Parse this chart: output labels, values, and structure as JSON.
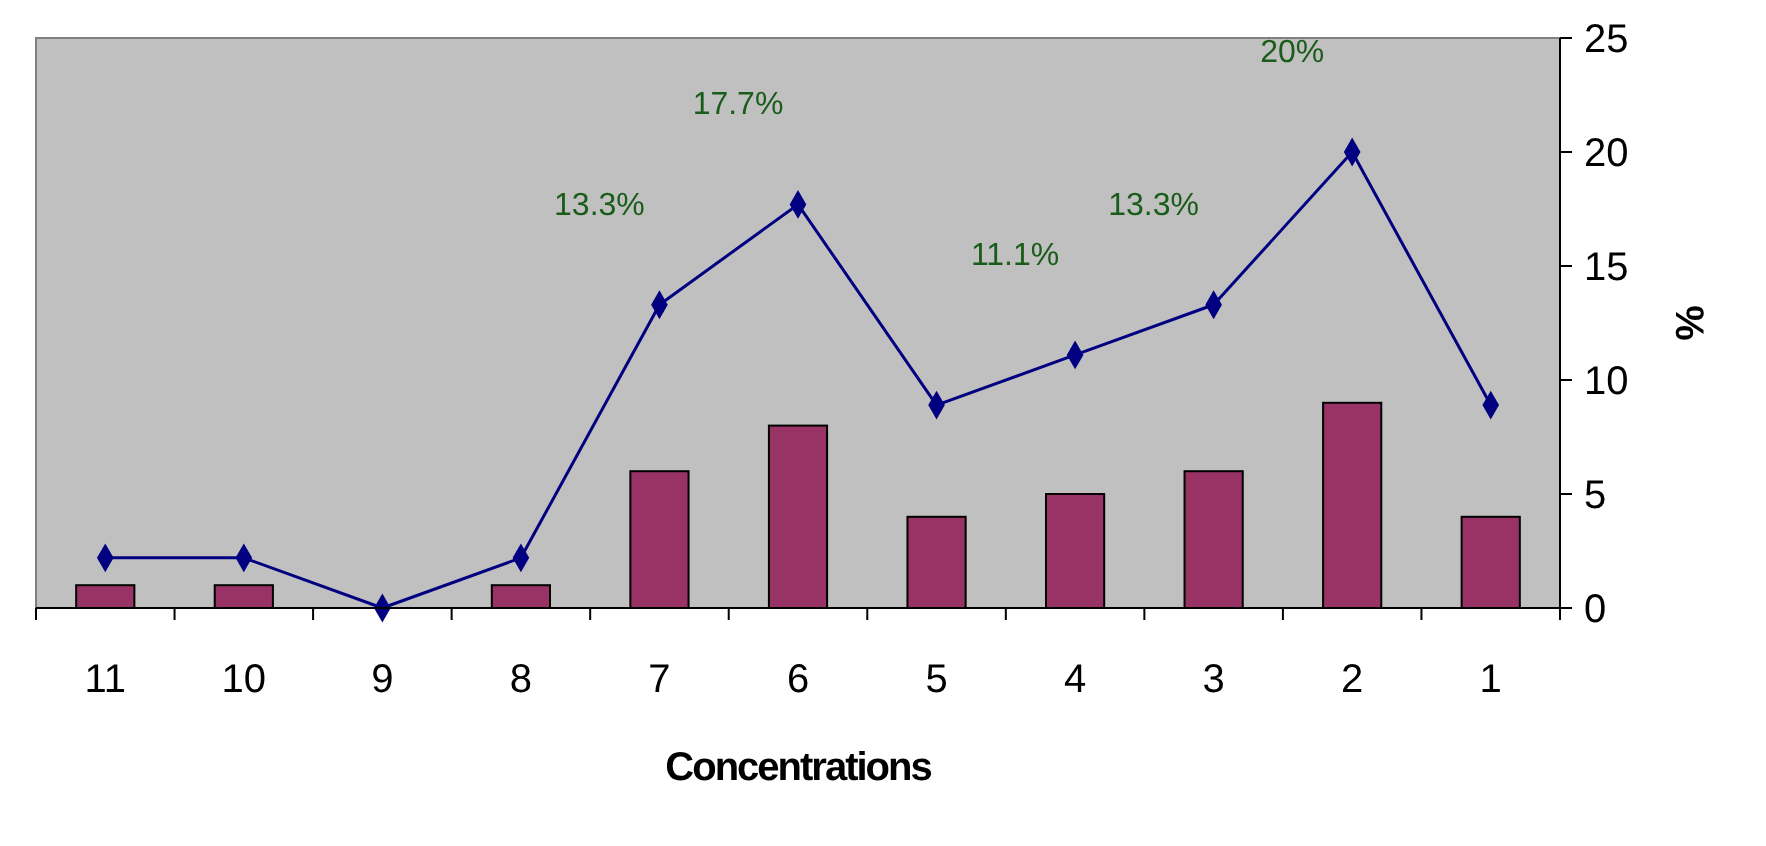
{
  "chart_data": {
    "type": "bar",
    "xlabel": "Concentrations",
    "y2label": "%",
    "categories": [
      "11",
      "10",
      "9",
      "8",
      "7",
      "6",
      "5",
      "4",
      "3",
      "2",
      "1"
    ],
    "series": [
      {
        "axis": "y2",
        "color": "#993366",
        "values": [
          1,
          1,
          0,
          1,
          6,
          8,
          4,
          5,
          6,
          9,
          4
        ]
      },
      {
        "type": "line",
        "axis": "y2",
        "color": "#000080",
        "marker": "diamond",
        "values": [
          2.2,
          2.2,
          0,
          2.2,
          13.3,
          17.7,
          8.9,
          11.1,
          13.3,
          20,
          8.9
        ],
        "value_labels": [
          null,
          null,
          null,
          null,
          "13.3%",
          "17.7%",
          null,
          "11.1%",
          "13.3%",
          "20%",
          null
        ]
      }
    ],
    "y2lim": [
      0,
      25
    ],
    "y2ticks": [
      0,
      5,
      10,
      15,
      20,
      25
    ],
    "grid": false
  }
}
